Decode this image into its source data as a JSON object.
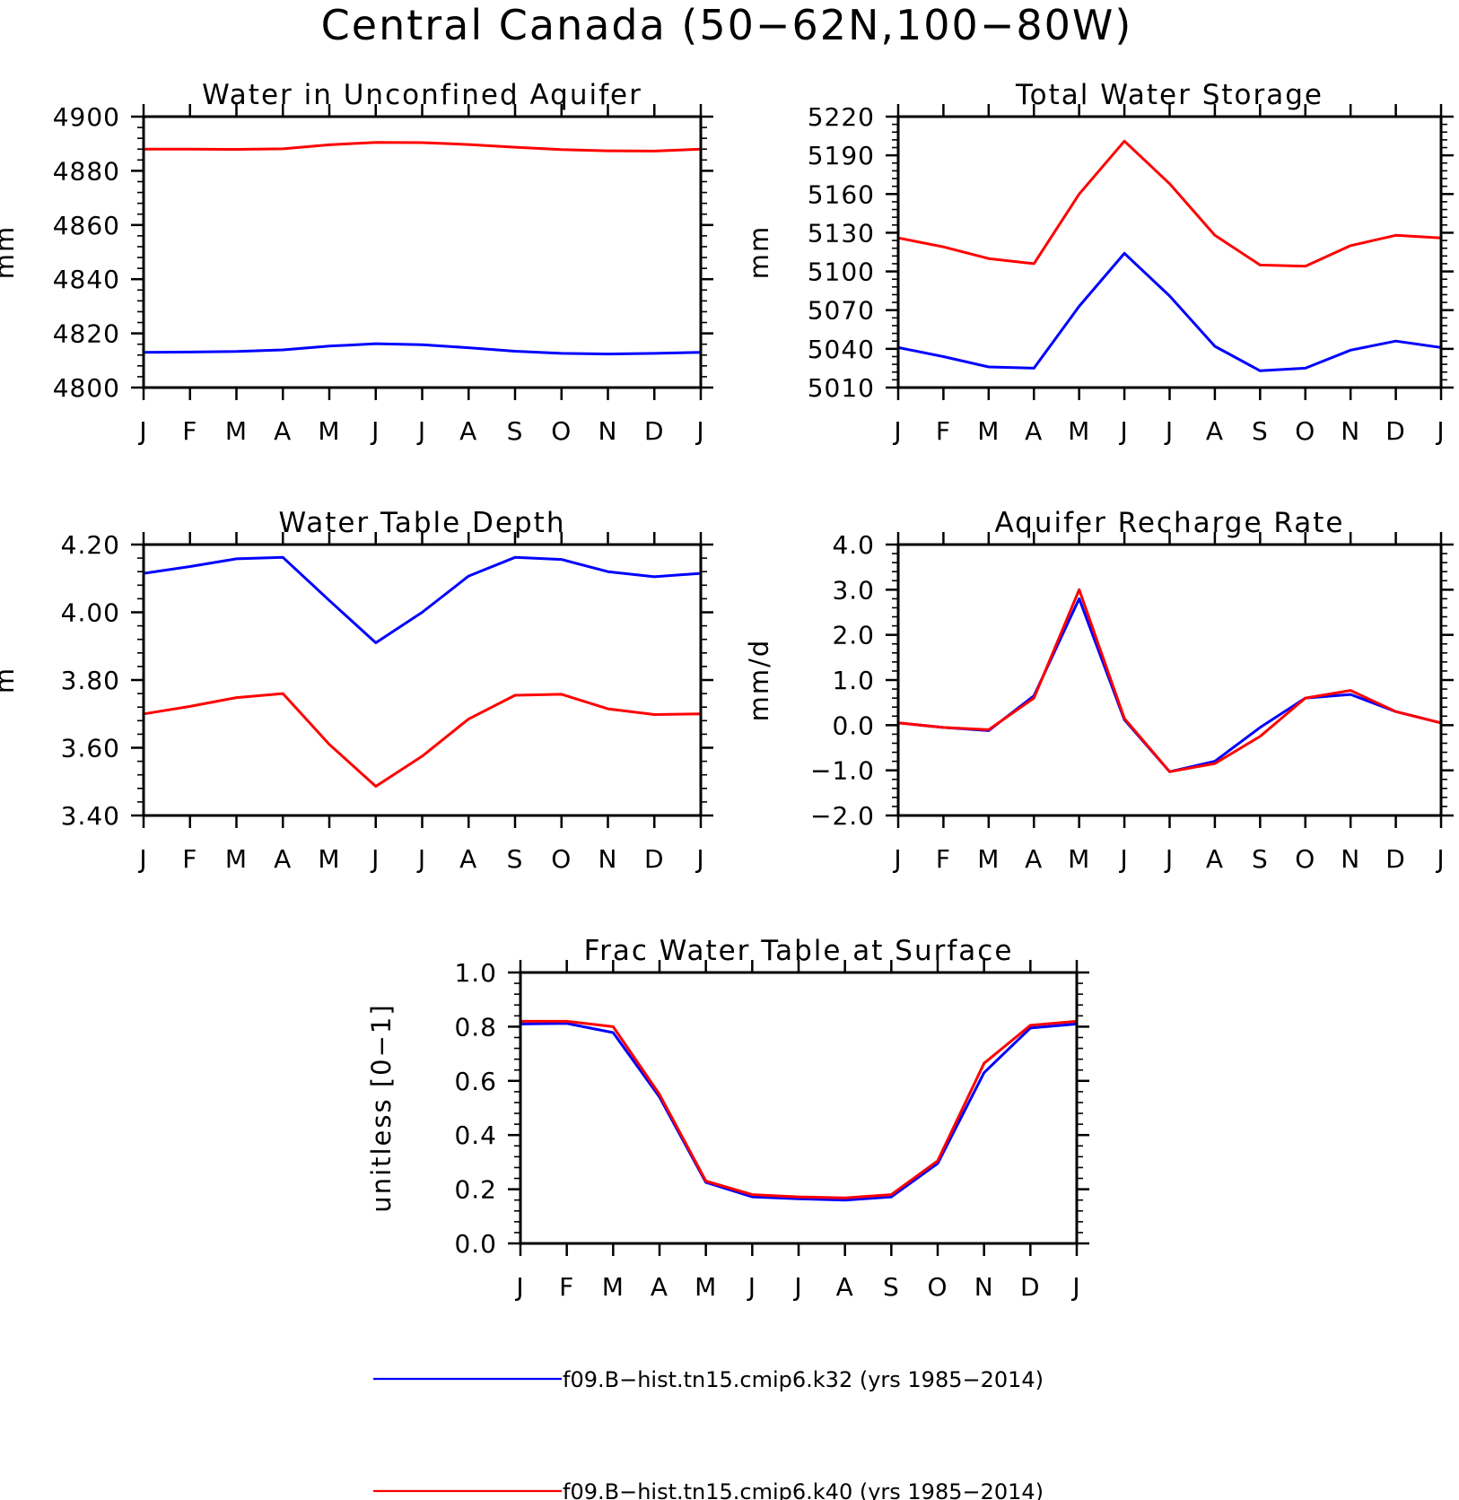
{
  "figure": {
    "title": "Central Canada (50−62N,100−80W)"
  },
  "colors": {
    "k32": "#0000ff",
    "k40": "#ff0000"
  },
  "legend": {
    "placement": "bottom-center",
    "items": [
      {
        "label": "f09.B−hist.tn15.cmip6.k32 (yrs 1985−2014)",
        "color": "#0000ff"
      },
      {
        "label": "f09.B−hist.tn15.cmip6.k40 (yrs 1985−2014)",
        "color": "#ff0000"
      }
    ]
  },
  "chart_data": [
    {
      "type": "line",
      "title": "Water in Unconfined Aquifer",
      "ylabel": "mm",
      "ylim": [
        4800,
        4900
      ],
      "yticks": [
        "4800",
        "4820",
        "4840",
        "4860",
        "4880",
        "4900"
      ],
      "x": [
        "J",
        "F",
        "M",
        "A",
        "M",
        "J",
        "J",
        "A",
        "S",
        "O",
        "N",
        "D",
        "J"
      ],
      "series": [
        {
          "name": "f09.B−hist.tn15.cmip6.k32 (yrs 1985−2014)",
          "color": "#0000ff",
          "values": [
            4813,
            4813.1,
            4813.3,
            4813.9,
            4815.3,
            4816.2,
            4815.8,
            4814.7,
            4813.4,
            4812.6,
            4812.4,
            4812.6,
            4813
          ]
        },
        {
          "name": "f09.B−hist.tn15.cmip6.k40 (yrs 1985−2014)",
          "color": "#ff0000",
          "values": [
            4888,
            4888,
            4887.9,
            4888.1,
            4889.6,
            4890.5,
            4890.4,
            4889.7,
            4888.7,
            4887.8,
            4887.4,
            4887.3,
            4888
          ]
        }
      ]
    },
    {
      "type": "line",
      "title": "Total Water Storage",
      "ylabel": "mm",
      "ylim": [
        5010,
        5220
      ],
      "yticks": [
        "5010",
        "5040",
        "5070",
        "5100",
        "5130",
        "5160",
        "5190",
        "5220"
      ],
      "x": [
        "J",
        "F",
        "M",
        "A",
        "M",
        "J",
        "J",
        "A",
        "S",
        "O",
        "N",
        "D",
        "J"
      ],
      "series": [
        {
          "name": "f09.B−hist.tn15.cmip6.k32 (yrs 1985−2014)",
          "color": "#0000ff",
          "values": [
            5041,
            5034,
            5026,
            5025,
            5073,
            5114,
            5081,
            5042,
            5023,
            5025,
            5039,
            5046,
            5041
          ]
        },
        {
          "name": "f09.B−hist.tn15.cmip6.k40 (yrs 1985−2014)",
          "color": "#ff0000",
          "values": [
            5126,
            5119,
            5110,
            5106,
            5160,
            5201,
            5168,
            5128,
            5105,
            5104,
            5120,
            5128,
            5126
          ]
        }
      ]
    },
    {
      "type": "line",
      "title": "Water Table Depth",
      "ylabel": "m",
      "ylim": [
        3.4,
        4.2
      ],
      "yticks": [
        "3.40",
        "3.60",
        "3.80",
        "4.00",
        "4.20"
      ],
      "x": [
        "J",
        "F",
        "M",
        "A",
        "M",
        "J",
        "J",
        "A",
        "S",
        "O",
        "N",
        "D",
        "J"
      ],
      "series": [
        {
          "name": "f09.B−hist.tn15.cmip6.k32 (yrs 1985−2014)",
          "color": "#0000ff",
          "values": [
            4.115,
            4.135,
            4.158,
            4.162,
            4.035,
            3.91,
            4.0,
            4.107,
            4.162,
            4.156,
            4.12,
            4.105,
            4.115
          ]
        },
        {
          "name": "f09.B−hist.tn15.cmip6.k40 (yrs 1985−2014)",
          "color": "#ff0000",
          "values": [
            3.7,
            3.722,
            3.748,
            3.76,
            3.61,
            3.486,
            3.575,
            3.685,
            3.755,
            3.758,
            3.715,
            3.698,
            3.7
          ]
        }
      ]
    },
    {
      "type": "line",
      "title": "Aquifer Recharge Rate",
      "ylabel": "mm/d",
      "ylim": [
        -2,
        4
      ],
      "yticks": [
        "−2.0",
        "−1.0",
        "0.0",
        "1.0",
        "2.0",
        "3.0",
        "4.0"
      ],
      "x": [
        "J",
        "F",
        "M",
        "A",
        "M",
        "J",
        "J",
        "A",
        "S",
        "O",
        "N",
        "D",
        "J"
      ],
      "series": [
        {
          "name": "f09.B−hist.tn15.cmip6.k32 (yrs 1985−2014)",
          "color": "#0000ff",
          "values": [
            0.05,
            -0.05,
            -0.12,
            0.65,
            2.8,
            0.12,
            -1.03,
            -0.8,
            -0.05,
            0.6,
            0.68,
            0.3,
            0.05
          ]
        },
        {
          "name": "f09.B−hist.tn15.cmip6.k40 (yrs 1985−2014)",
          "color": "#ff0000",
          "values": [
            0.05,
            -0.05,
            -0.1,
            0.6,
            3.0,
            0.15,
            -1.03,
            -0.85,
            -0.25,
            0.6,
            0.77,
            0.3,
            0.05
          ]
        }
      ]
    },
    {
      "type": "line",
      "title": "Frac Water Table at Surface",
      "ylabel": "unitless [0−1]",
      "ylim": [
        0,
        1
      ],
      "yticks": [
        "0.0",
        "0.2",
        "0.4",
        "0.6",
        "0.8",
        "1.0"
      ],
      "x": [
        "J",
        "F",
        "M",
        "A",
        "M",
        "J",
        "J",
        "A",
        "S",
        "O",
        "N",
        "D",
        "J"
      ],
      "series": [
        {
          "name": "f09.B−hist.tn15.cmip6.k32 (yrs 1985−2014)",
          "color": "#0000ff",
          "values": [
            0.81,
            0.812,
            0.778,
            0.54,
            0.225,
            0.172,
            0.165,
            0.16,
            0.172,
            0.295,
            0.63,
            0.795,
            0.81
          ]
        },
        {
          "name": "f09.B−hist.tn15.cmip6.k40 (yrs 1985−2014)",
          "color": "#ff0000",
          "values": [
            0.82,
            0.82,
            0.8,
            0.55,
            0.23,
            0.18,
            0.172,
            0.168,
            0.18,
            0.305,
            0.665,
            0.805,
            0.82
          ]
        }
      ]
    }
  ]
}
